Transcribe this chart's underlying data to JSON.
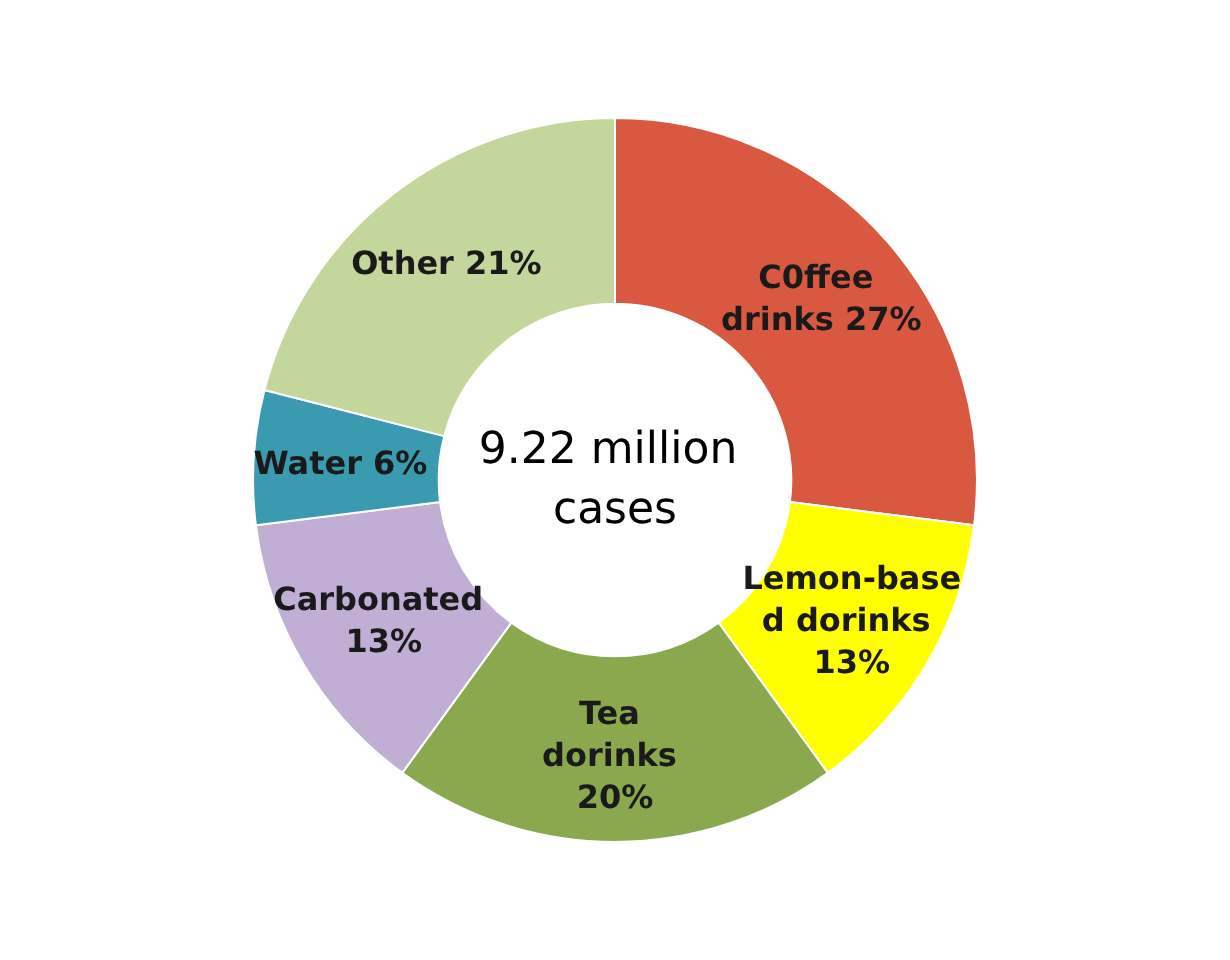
{
  "chart_data": {
    "type": "donut",
    "categories": [
      "C0ffee drinks",
      "Lemon-based dorinks",
      "Tea dorinks",
      "Carbonated",
      "Water",
      "Other"
    ],
    "values": [
      27,
      13,
      20,
      13,
      6,
      21
    ],
    "colors": [
      "#d95840",
      "#ffff00",
      "#8aa94f",
      "#c0aed4",
      "#3a9ab0",
      "#c3d69b"
    ],
    "annotations": [
      "9.22 million cases"
    ],
    "value_labels": [
      "27%",
      "13%",
      "20%",
      "13%",
      "6%",
      "21%"
    ],
    "legend": false
  }
}
